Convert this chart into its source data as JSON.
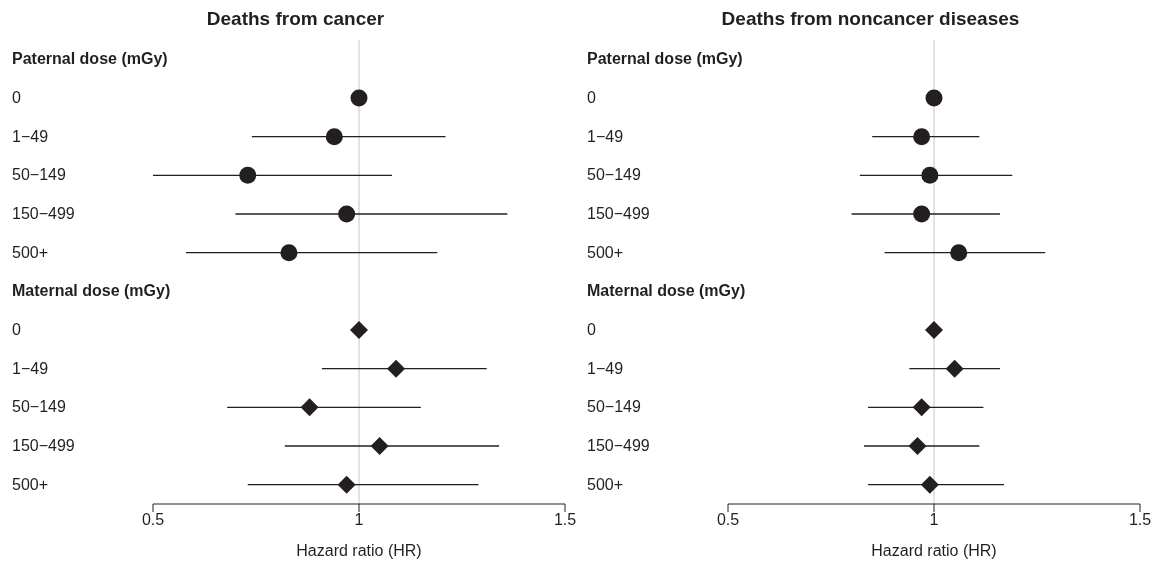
{
  "chart_data": [
    {
      "type": "scatter",
      "title": "Deaths from cancer",
      "orientation": "horizontal",
      "xlabel": "Hazard ratio (HR)",
      "xlim": [
        0.5,
        1.5
      ],
      "xticks": [
        0.5,
        1,
        1.5
      ],
      "grid": false,
      "legend": false,
      "categories": [
        "Paternal dose (mGy)",
        "0",
        "1−49",
        "50−149",
        "150−499",
        "500+",
        "Maternal dose (mGy)",
        "0",
        "1−49",
        "50−149",
        "150−499",
        "500+"
      ],
      "ref_lines": [
        {
          "axis": "x",
          "value": 1,
          "color": "#d9d9d9"
        }
      ],
      "series": [
        {
          "color": "#231f20",
          "marker": "circle",
          "values": [
            null,
            1.0,
            0.94,
            0.73,
            0.97,
            0.83,
            null,
            null,
            null,
            null,
            null,
            null
          ],
          "errors": [
            null,
            null,
            [
              0.74,
              1.21
            ],
            [
              0.5,
              1.08
            ],
            [
              0.7,
              1.36
            ],
            [
              0.58,
              1.19
            ],
            null,
            null,
            null,
            null,
            null,
            null
          ]
        },
        {
          "color": "#231f20",
          "marker": "diamond",
          "values": [
            null,
            null,
            null,
            null,
            null,
            null,
            null,
            1.0,
            1.09,
            0.88,
            1.05,
            0.97
          ],
          "errors": [
            null,
            null,
            null,
            null,
            null,
            null,
            null,
            null,
            [
              0.91,
              1.31
            ],
            [
              0.68,
              1.15
            ],
            [
              0.82,
              1.34
            ],
            [
              0.73,
              1.29
            ]
          ]
        }
      ]
    },
    {
      "type": "scatter",
      "title": "Deaths from noncancer diseases",
      "orientation": "horizontal",
      "xlabel": "Hazard ratio (HR)",
      "xlim": [
        0.5,
        1.5
      ],
      "xticks": [
        0.5,
        1,
        1.5
      ],
      "grid": false,
      "legend": false,
      "categories": [
        "Paternal dose (mGy)",
        "0",
        "1−49",
        "50−149",
        "150−499",
        "500+",
        "Maternal dose (mGy)",
        "0",
        "1−49",
        "50−149",
        "150−499",
        "500+"
      ],
      "ref_lines": [
        {
          "axis": "x",
          "value": 1,
          "color": "#d9d9d9"
        }
      ],
      "series": [
        {
          "color": "#231f20",
          "marker": "circle",
          "values": [
            null,
            1.0,
            0.97,
            0.99,
            0.97,
            1.06,
            null,
            null,
            null,
            null,
            null,
            null
          ],
          "errors": [
            null,
            null,
            [
              0.85,
              1.11
            ],
            [
              0.82,
              1.19
            ],
            [
              0.8,
              1.16
            ],
            [
              0.88,
              1.27
            ],
            null,
            null,
            null,
            null,
            null,
            null
          ]
        },
        {
          "color": "#231f20",
          "marker": "diamond",
          "values": [
            null,
            null,
            null,
            null,
            null,
            null,
            null,
            1.0,
            1.05,
            0.97,
            0.96,
            0.99
          ],
          "errors": [
            null,
            null,
            null,
            null,
            null,
            null,
            null,
            null,
            [
              0.94,
              1.16
            ],
            [
              0.84,
              1.12
            ],
            [
              0.83,
              1.11
            ],
            [
              0.84,
              1.17
            ]
          ]
        }
      ]
    }
  ]
}
